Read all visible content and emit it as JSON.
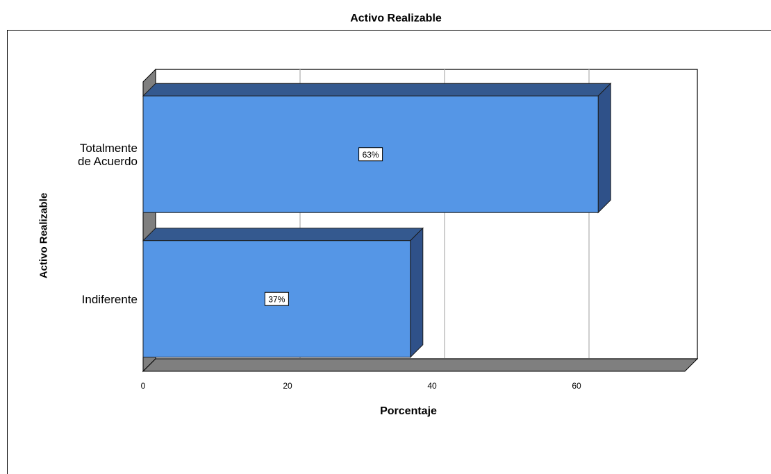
{
  "chart_data": {
    "type": "bar",
    "orientation": "horizontal",
    "style": "3d",
    "title": "Activo Realizable",
    "xlabel": "Porcentaje",
    "ylabel": "Activo Realizable",
    "categories": [
      "Totalmente de Acuerdo",
      "Indiferente"
    ],
    "category_lines": [
      [
        "Totalmente",
        "de Acuerdo"
      ],
      [
        "Indiferente"
      ]
    ],
    "values": [
      63,
      37
    ],
    "data_labels": [
      "63%",
      "37%"
    ],
    "xlim": [
      0,
      75
    ],
    "x_ticks": [
      0,
      20,
      40,
      60
    ],
    "x_tick_labels": [
      "0",
      "20",
      "40",
      "60"
    ],
    "grid": "vertical",
    "legend": "none",
    "colors": {
      "bar_front": "#5596e6",
      "bar_top": "#34598f",
      "bar_side": "#2f5189",
      "floor": "#7f7f7f",
      "wall_side": "#7f7f7f",
      "gridline": "#bdbdbd"
    }
  }
}
